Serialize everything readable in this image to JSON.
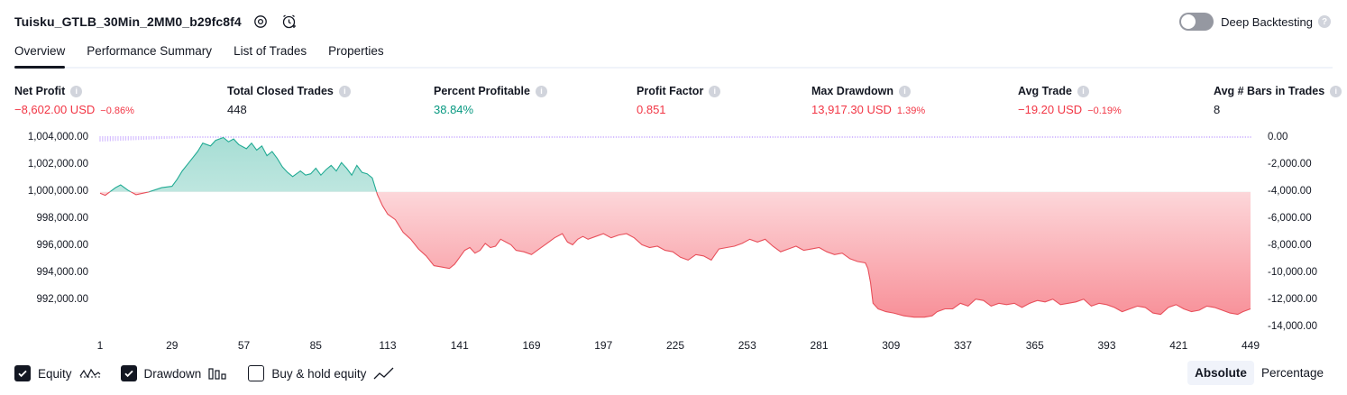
{
  "header": {
    "title": "Tuisku_GTLB_30Min_2MM0_b29fc8f4",
    "deep_backtesting_label": "Deep Backtesting",
    "deep_backtesting_enabled": false
  },
  "tabs": [
    {
      "label": "Overview",
      "active": true
    },
    {
      "label": "Performance Summary",
      "active": false
    },
    {
      "label": "List of Trades",
      "active": false
    },
    {
      "label": "Properties",
      "active": false
    }
  ],
  "metrics": [
    {
      "label": "Net Profit",
      "value": "−8,602.00 USD",
      "sub": "−0.86%",
      "tone": "neg"
    },
    {
      "label": "Total Closed Trades",
      "value": "448",
      "sub": "",
      "tone": "neu"
    },
    {
      "label": "Percent Profitable",
      "value": "38.84%",
      "sub": "",
      "tone": "pos"
    },
    {
      "label": "Profit Factor",
      "value": "0.851",
      "sub": "",
      "tone": "neg"
    },
    {
      "label": "Max Drawdown",
      "value": "13,917.30 USD",
      "sub": "1.39%",
      "tone": "neg"
    },
    {
      "label": "Avg Trade",
      "value": "−19.20 USD",
      "sub": "−0.19%",
      "tone": "neg"
    },
    {
      "label": "Avg # Bars in Trades",
      "value": "8",
      "sub": "",
      "tone": "neu"
    }
  ],
  "chart_data": {
    "type": "area",
    "x_ticks": [
      "1",
      "29",
      "57",
      "85",
      "113",
      "141",
      "169",
      "197",
      "225",
      "253",
      "281",
      "309",
      "337",
      "365",
      "393",
      "421",
      "449"
    ],
    "xlim": [
      1,
      449
    ],
    "left_axis": {
      "ticks": [
        "1,004,000.00",
        "1,002,000.00",
        "1,000,000.00",
        "998,000.00",
        "996,000.00",
        "994,000.00",
        "992,000.00"
      ],
      "ylim": [
        990400,
        1004000
      ]
    },
    "right_axis": {
      "ticks": [
        "0.00",
        "-2,000.00",
        "-4,000.00",
        "-6,000.00",
        "-8,000.00",
        "-10,000.00",
        "-12,000.00",
        "-14,000.00"
      ],
      "ylim": [
        -14000,
        0
      ]
    },
    "series": [
      {
        "name": "Equity",
        "baseline": 1000000,
        "points": [
          [
            1,
            999900
          ],
          [
            3,
            999750
          ],
          [
            7,
            1000300
          ],
          [
            9,
            1000500
          ],
          [
            12,
            1000100
          ],
          [
            15,
            999800
          ],
          [
            20,
            1000000
          ],
          [
            25,
            1000300
          ],
          [
            29,
            1000400
          ],
          [
            31,
            1000900
          ],
          [
            33,
            1001500
          ],
          [
            36,
            1002200
          ],
          [
            39,
            1002900
          ],
          [
            41,
            1003500
          ],
          [
            44,
            1003300
          ],
          [
            46,
            1003700
          ],
          [
            49,
            1003900
          ],
          [
            51,
            1003600
          ],
          [
            53,
            1003800
          ],
          [
            55,
            1003400
          ],
          [
            58,
            1003100
          ],
          [
            60,
            1003500
          ],
          [
            62,
            1003000
          ],
          [
            64,
            1003300
          ],
          [
            66,
            1002600
          ],
          [
            68,
            1002900
          ],
          [
            70,
            1002400
          ],
          [
            72,
            1001800
          ],
          [
            74,
            1001400
          ],
          [
            76,
            1001100
          ],
          [
            79,
            1001500
          ],
          [
            81,
            1001200
          ],
          [
            83,
            1001300
          ],
          [
            85,
            1001700
          ],
          [
            87,
            1001200
          ],
          [
            89,
            1001600
          ],
          [
            91,
            1001900
          ],
          [
            93,
            1001500
          ],
          [
            95,
            1002100
          ],
          [
            97,
            1001700
          ],
          [
            99,
            1001200
          ],
          [
            101,
            1001900
          ],
          [
            103,
            1001400
          ],
          [
            105,
            1001300
          ],
          [
            107,
            1001000
          ],
          [
            109,
            999800
          ],
          [
            111,
            999000
          ],
          [
            113,
            998400
          ],
          [
            116,
            998000
          ],
          [
            119,
            997100
          ],
          [
            122,
            996600
          ],
          [
            125,
            995900
          ],
          [
            128,
            995400
          ],
          [
            131,
            994700
          ],
          [
            134,
            994600
          ],
          [
            137,
            994500
          ],
          [
            139,
            994800
          ],
          [
            141,
            995300
          ],
          [
            143,
            995800
          ],
          [
            145,
            996000
          ],
          [
            147,
            995600
          ],
          [
            149,
            995800
          ],
          [
            151,
            996300
          ],
          [
            153,
            996000
          ],
          [
            155,
            996100
          ],
          [
            157,
            996600
          ],
          [
            159,
            996400
          ],
          [
            161,
            996200
          ],
          [
            163,
            995800
          ],
          [
            166,
            995700
          ],
          [
            169,
            995500
          ],
          [
            172,
            995900
          ],
          [
            175,
            996300
          ],
          [
            178,
            996700
          ],
          [
            181,
            997000
          ],
          [
            183,
            996400
          ],
          [
            185,
            996200
          ],
          [
            187,
            996600
          ],
          [
            189,
            996800
          ],
          [
            191,
            996600
          ],
          [
            194,
            996800
          ],
          [
            197,
            997000
          ],
          [
            200,
            996700
          ],
          [
            203,
            996900
          ],
          [
            206,
            997000
          ],
          [
            209,
            996700
          ],
          [
            212,
            996200
          ],
          [
            215,
            996000
          ],
          [
            218,
            996100
          ],
          [
            221,
            995800
          ],
          [
            224,
            995700
          ],
          [
            227,
            995300
          ],
          [
            230,
            995100
          ],
          [
            233,
            995500
          ],
          [
            236,
            995400
          ],
          [
            239,
            995100
          ],
          [
            242,
            995900
          ],
          [
            245,
            996000
          ],
          [
            248,
            996100
          ],
          [
            251,
            996300
          ],
          [
            254,
            996600
          ],
          [
            257,
            996400
          ],
          [
            260,
            996600
          ],
          [
            263,
            996100
          ],
          [
            266,
            995700
          ],
          [
            269,
            995900
          ],
          [
            272,
            996100
          ],
          [
            275,
            995800
          ],
          [
            278,
            995900
          ],
          [
            281,
            996000
          ],
          [
            284,
            995700
          ],
          [
            287,
            995500
          ],
          [
            290,
            995600
          ],
          [
            293,
            995200
          ],
          [
            296,
            995000
          ],
          [
            299,
            994900
          ],
          [
            300,
            994500
          ],
          [
            301,
            993500
          ],
          [
            302,
            992000
          ],
          [
            304,
            991600
          ],
          [
            307,
            991400
          ],
          [
            310,
            991300
          ],
          [
            314,
            991100
          ],
          [
            318,
            991000
          ],
          [
            322,
            991000
          ],
          [
            325,
            991100
          ],
          [
            327,
            991400
          ],
          [
            330,
            991600
          ],
          [
            333,
            991600
          ],
          [
            336,
            992000
          ],
          [
            339,
            991800
          ],
          [
            342,
            992300
          ],
          [
            345,
            992200
          ],
          [
            348,
            991800
          ],
          [
            351,
            992000
          ],
          [
            354,
            991900
          ],
          [
            357,
            992000
          ],
          [
            360,
            991700
          ],
          [
            363,
            992000
          ],
          [
            366,
            992200
          ],
          [
            369,
            992100
          ],
          [
            372,
            992300
          ],
          [
            375,
            991900
          ],
          [
            378,
            992000
          ],
          [
            381,
            992100
          ],
          [
            384,
            992300
          ],
          [
            387,
            991800
          ],
          [
            390,
            992000
          ],
          [
            393,
            991900
          ],
          [
            396,
            991700
          ],
          [
            399,
            991400
          ],
          [
            402,
            991600
          ],
          [
            405,
            991800
          ],
          [
            408,
            991700
          ],
          [
            411,
            991300
          ],
          [
            414,
            991200
          ],
          [
            417,
            991700
          ],
          [
            420,
            991900
          ],
          [
            423,
            991600
          ],
          [
            426,
            991400
          ],
          [
            429,
            991500
          ],
          [
            432,
            991800
          ],
          [
            435,
            991700
          ],
          [
            438,
            991500
          ],
          [
            441,
            991300
          ],
          [
            444,
            991200
          ],
          [
            446,
            991400
          ],
          [
            449,
            991600
          ]
        ]
      },
      {
        "name": "Drawdown",
        "segments": [
          {
            "from": 1,
            "to": 45,
            "depth": [
              -400,
              -50
            ]
          },
          {
            "from": 46,
            "to": 112,
            "depth": [
              -100,
              -40
            ]
          },
          {
            "from": 113,
            "to": 449,
            "depth": [
              -60,
              -30
            ]
          }
        ]
      }
    ]
  },
  "legend": [
    {
      "label": "Equity",
      "checked": true,
      "icon": "equity-wave-icon"
    },
    {
      "label": "Drawdown",
      "checked": true,
      "icon": "bars-icon"
    },
    {
      "label": "Buy & hold equity",
      "checked": false,
      "icon": "line-up-icon"
    }
  ],
  "modes": [
    {
      "label": "Absolute",
      "active": true
    },
    {
      "label": "Percentage",
      "active": false
    }
  ],
  "colors": {
    "equity_line": "#22ab94",
    "equity_fill_pos": "#22ab94",
    "equity_fill_neg": "#f23645",
    "drawdown": "#b388ff",
    "negative_text": "#f23645",
    "positive_text": "#089981"
  }
}
